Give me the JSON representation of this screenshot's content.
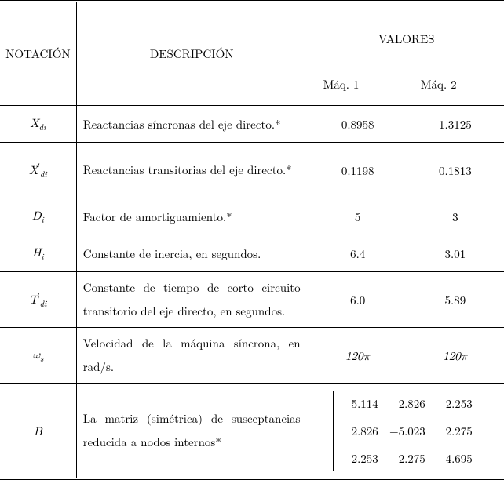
{
  "headers": {
    "notation": "NOTACIÓN",
    "description": "DESCRIPCIÓN",
    "values": "VALORES",
    "maq1": "Máq. 1",
    "maq2": "Máq. 2"
  },
  "rows": {
    "xdi": {
      "notation_html": "<span class='math'>X</span><span class='sub'>di</span>",
      "description": "Reactancias síncronas del eje directo.*",
      "v1": "0.8958",
      "v2": "1.3125"
    },
    "xdi_prime": {
      "notation_html": "<span class='math'>X</span><span class='prime' style='vertical-align:super;font-size:0.75em'>′</span><span class='sub'>di</span>",
      "description": "Reactancias transitorias del eje directo.*",
      "v1": "0.1198",
      "v2": "0.1813"
    },
    "di": {
      "notation_html": "<span class='math'>D</span><span class='sub'>i</span>",
      "description": "Factor de amortiguamiento.*",
      "v1": "5",
      "v2": "3"
    },
    "hi": {
      "notation_html": "<span class='math'>H</span><span class='sub'>i</span>",
      "description": "Constante de inercia, en segundos.",
      "v1": "6.4",
      "v2": "3.01"
    },
    "tdi_prime": {
      "notation_html": "<span class='math'>T</span><span class='prime' style='vertical-align:super;font-size:0.75em'>′</span><span class='sub'>di</span>",
      "description": "Constante de tiempo de corto circuito transitorio del eje directo, en segundos.",
      "v1": "6.0",
      "v2": "5.89"
    },
    "omega_s": {
      "notation_html": "<span class='math'>ω</span><span class='sub'>s</span>",
      "description": "Velocidad de la máquina síncrona, en rad/s.",
      "v1": "120π",
      "v2": "120π"
    },
    "B": {
      "notation_html": "<span class='math'>B</span>",
      "description": "La matriz (simétrica) de susceptancias reducida a nodos internos*",
      "matrix": [
        [
          "−5.114",
          "2.826",
          "2.253"
        ],
        [
          "2.826",
          "−5.023",
          "2.275"
        ],
        [
          "2.253",
          "2.275",
          "−4.695"
        ]
      ]
    }
  }
}
